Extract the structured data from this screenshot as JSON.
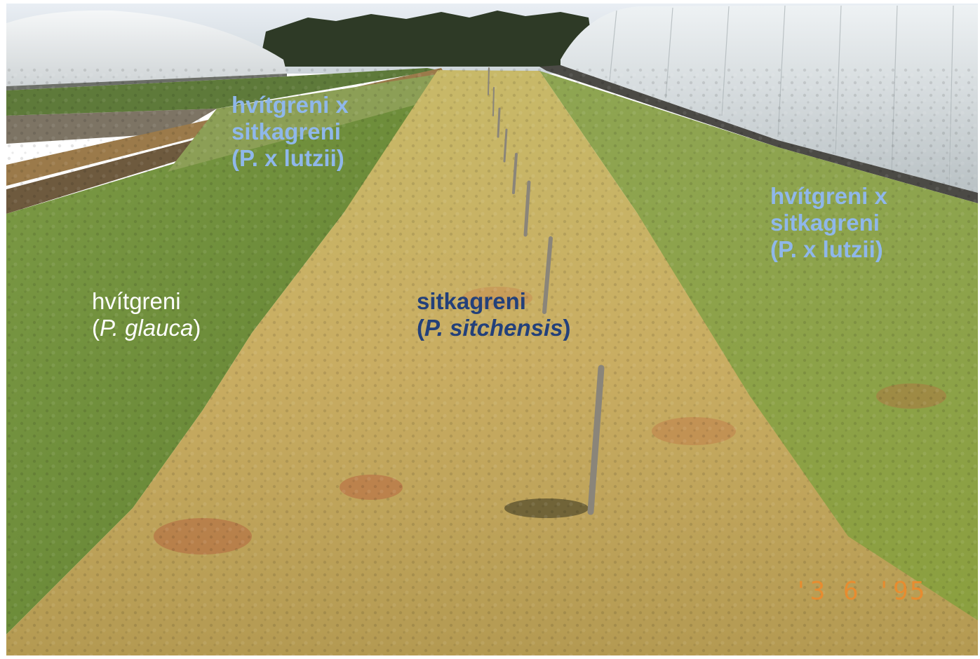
{
  "labels": {
    "left": {
      "common": "hvítgreni",
      "open": "(",
      "latin": "P. glauca",
      "close": ")"
    },
    "center": {
      "common": "sitkagreni",
      "open": "(",
      "latin": "P. sitchensis",
      "close": ")"
    },
    "far_left": {
      "line1": "hvítgreni x",
      "line2": "sitkagreni",
      "line3": "(P. x lutzii)"
    },
    "right": {
      "line1": "hvítgreni x",
      "line2": "sitkagreni",
      "line3": "(P. x lutzii)"
    }
  },
  "date_stamp": "'3  6 '95",
  "colors": {
    "white_label": "#ffffff",
    "navy_label": "#23407a",
    "lightblue_label": "#8fb7ea",
    "date_stamp": "#f08a2a"
  }
}
